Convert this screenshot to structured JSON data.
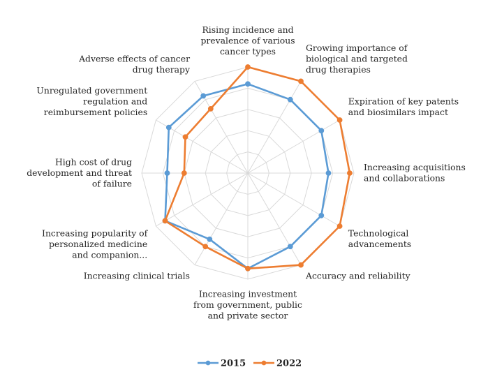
{
  "chart_data": {
    "type": "radar",
    "categories": [
      [
        "Rising incidence and",
        "prevalence of various",
        "cancer types"
      ],
      [
        "Growing importance of",
        "biological and targeted",
        "drug therapies"
      ],
      [
        "Expiration of key patents",
        "and biosimilars impact"
      ],
      [
        "Increasing acquisitions",
        "and collaborations"
      ],
      [
        "Technological",
        "advancements"
      ],
      [
        "Accuracy and reliability"
      ],
      [
        "Increasing investment",
        "from government, public",
        "and private sector"
      ],
      [
        "Increasing clinical trials"
      ],
      [
        "Increasing popularity of",
        "personalized medicine",
        "and companion..."
      ],
      [
        "High cost of drug",
        "development and threat",
        "of failure"
      ],
      [
        "Unregulated government",
        "regulation and",
        "reimbursement policies"
      ],
      [
        "Adverse effects of cancer",
        "drug therapy"
      ]
    ],
    "rlim": [
      0,
      5
    ],
    "grid_levels": 5,
    "series": [
      {
        "name": "2015",
        "color": "#5b9bd5",
        "values": [
          4.2,
          4.0,
          4.0,
          3.8,
          4.0,
          4.0,
          4.5,
          3.6,
          4.5,
          3.8,
          4.3,
          4.2
        ]
      },
      {
        "name": "2022",
        "color": "#ed7d31",
        "values": [
          5.0,
          5.0,
          5.0,
          4.8,
          5.0,
          5.0,
          4.5,
          4.0,
          4.5,
          3.0,
          3.4,
          3.5
        ]
      }
    ],
    "legend": {
      "position": "bottom",
      "entries": [
        "2015",
        "2022"
      ]
    }
  }
}
